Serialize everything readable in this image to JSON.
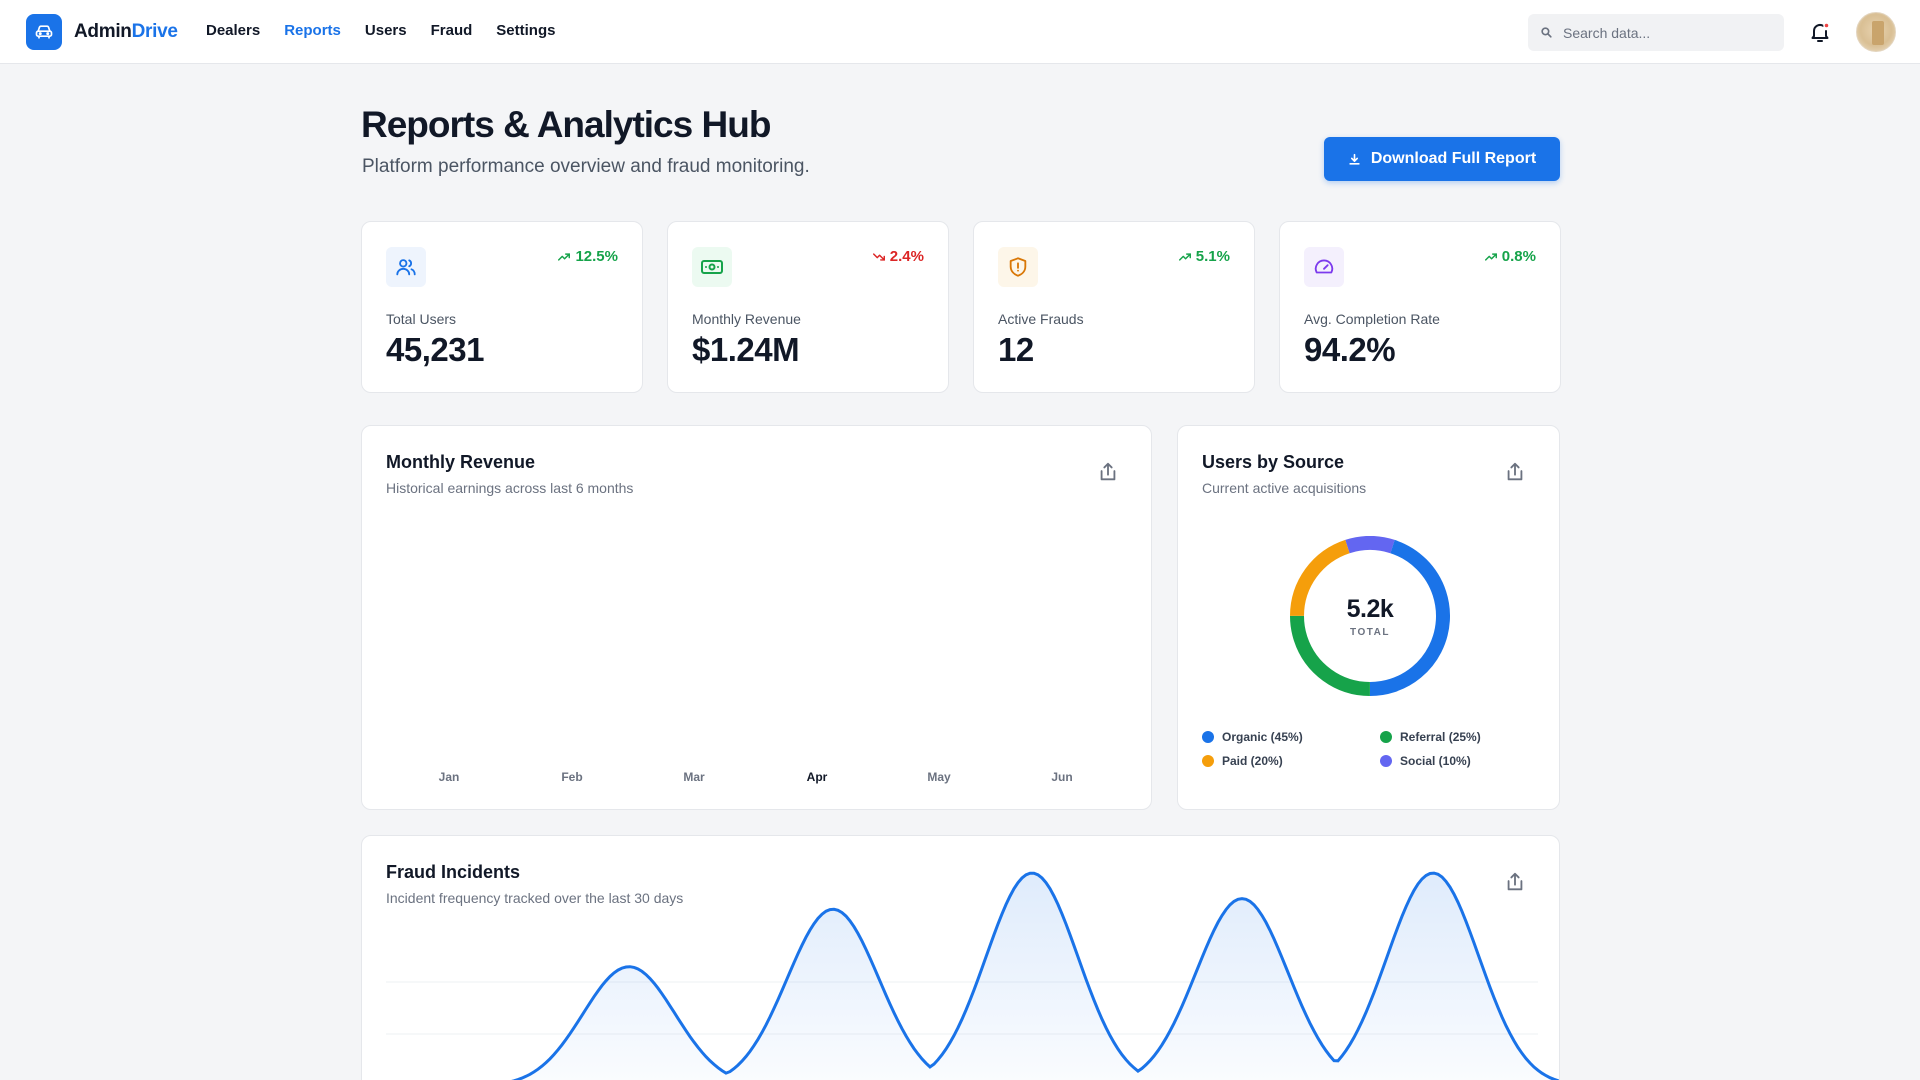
{
  "nav": {
    "brand_prefix": "Admin",
    "brand_suffix": "Drive",
    "links": [
      "Dealers",
      "Reports",
      "Users",
      "Fraud",
      "Settings"
    ],
    "active_link": "Reports",
    "search_placeholder": "Search data..."
  },
  "header": {
    "title": "Reports & Analytics Hub",
    "subtitle": "Platform performance overview and fraud monitoring.",
    "download_label": "Download Full Report"
  },
  "stats": [
    {
      "label": "Total Users",
      "value": "45,231",
      "trend": "12.5%",
      "direction": "up",
      "icon": "users-icon",
      "color": "#1a73e8",
      "bg": "#eef4fd"
    },
    {
      "label": "Monthly Revenue",
      "value": "$1.24M",
      "trend": "2.4%",
      "direction": "down",
      "icon": "money-icon",
      "color": "#16a34a",
      "bg": "#ecfaf1"
    },
    {
      "label": "Active Frauds",
      "value": "12",
      "trend": "5.1%",
      "direction": "up",
      "icon": "shield-alert-icon",
      "color": "#d97706",
      "bg": "#fdf6e9"
    },
    {
      "label": "Avg. Completion Rate",
      "value": "94.2%",
      "trend": "0.8%",
      "direction": "up",
      "icon": "gauge-icon",
      "color": "#7c3aed",
      "bg": "#f4f0fd"
    }
  ],
  "revenue_panel": {
    "title": "Monthly Revenue",
    "subtitle": "Historical earnings across last 6 months",
    "months": [
      "Jan",
      "Feb",
      "Mar",
      "Apr",
      "May",
      "Jun"
    ],
    "active_month": "Apr"
  },
  "source_panel": {
    "title": "Users by Source",
    "subtitle": "Current active acquisitions",
    "total": "5.2k",
    "total_caption": "TOTAL",
    "legend": [
      {
        "label": "Organic (45%)",
        "color": "#1a73e8"
      },
      {
        "label": "Referral (25%)",
        "color": "#16a34a"
      },
      {
        "label": "Paid (20%)",
        "color": "#f59e0b"
      },
      {
        "label": "Social (10%)",
        "color": "#6366f1"
      }
    ]
  },
  "fraud_panel": {
    "title": "Fraud Incidents",
    "subtitle": "Incident frequency tracked over the last 30 days"
  },
  "chart_data": [
    {
      "type": "pie",
      "title": "Users by Source",
      "categories": [
        "Organic",
        "Referral",
        "Paid",
        "Social"
      ],
      "values": [
        45,
        25,
        20,
        10
      ],
      "colors": [
        "#1a73e8",
        "#16a34a",
        "#f59e0b",
        "#6366f1"
      ],
      "center_label": "5.2k"
    },
    {
      "type": "area",
      "title": "Fraud Incidents",
      "peaks": [
        0.56,
        0.83,
        1.0,
        0.88,
        1.0
      ],
      "color": "#1a73e8"
    }
  ]
}
